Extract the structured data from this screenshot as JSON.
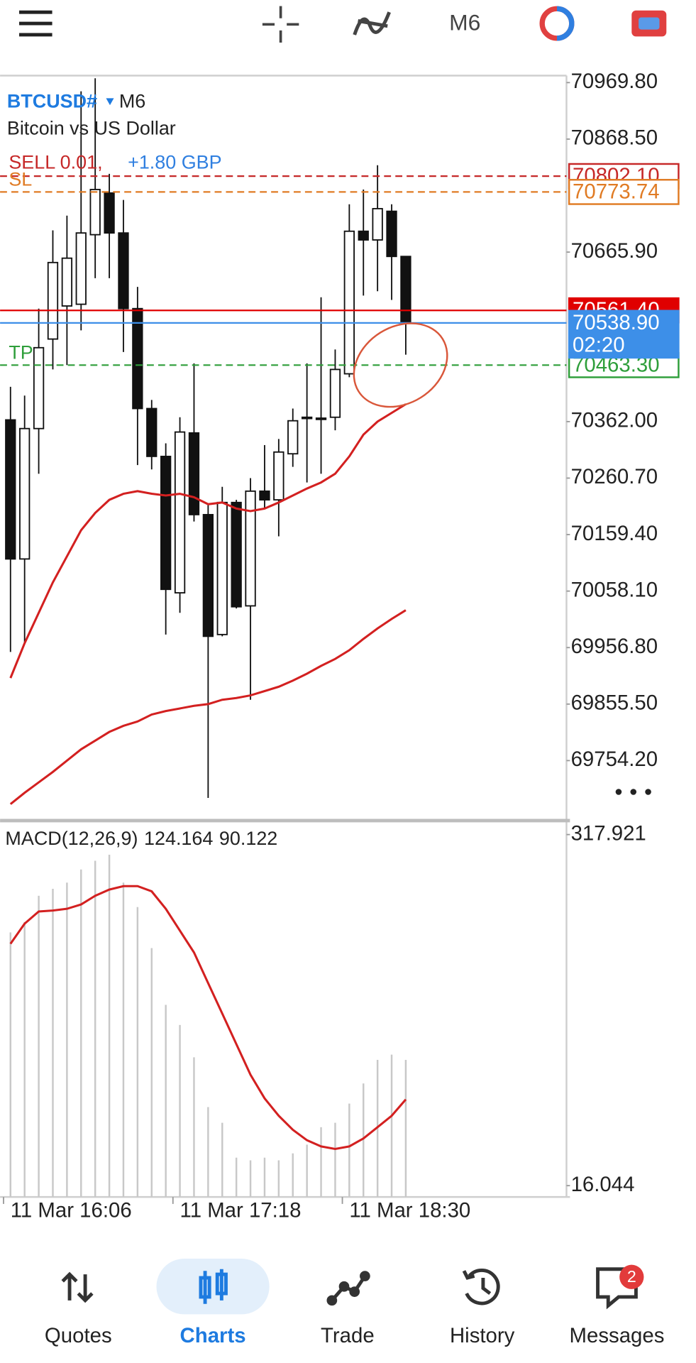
{
  "toolbar": {
    "timeframe": "M6"
  },
  "chart_data": [
    {
      "type": "candlestick",
      "symbol": "BTCUSD#",
      "timeframe": "M6",
      "subtitle": "Bitcoin vs US Dollar",
      "categories": [
        "11 Mar 16:06",
        null,
        null,
        null,
        null,
        null,
        null,
        null,
        null,
        null,
        null,
        null,
        "11 Mar 17:18",
        null,
        null,
        null,
        null,
        null,
        null,
        null,
        null,
        null,
        null,
        null,
        "11 Mar 18:30",
        null,
        null,
        null,
        null
      ],
      "open": [
        70365.1,
        70115.7,
        70349.5,
        70510.0,
        70569.3,
        70572.4,
        70697.1,
        70771.9,
        70700.2,
        70564.6,
        70385.4,
        70299.6,
        70055.0,
        70341.7,
        70195.2,
        69980.2,
        70217.0,
        70031.6,
        70237.3,
        70221.7,
        70304.3,
        70369.8,
        70368.2,
        70369.8,
        70447.7,
        70703.3,
        70687.7,
        70739.1,
        70658.1
      ],
      "high": [
        70424.3,
        70408.7,
        70564.6,
        70704.9,
        70731.3,
        70954.2,
        70977.6,
        70806.2,
        70759.4,
        70603.6,
        70400.9,
        70323.0,
        70369.8,
        70466.4,
        70213.9,
        70245.1,
        70221.7,
        70260.7,
        70319.9,
        70330.8,
        70385.4,
        70466.4,
        70584.9,
        70491.3,
        70751.6,
        70778.1,
        70821.7,
        70751.6,
        70658.1
      ],
      "low": [
        69949.0,
        69964.6,
        70268.5,
        70455.5,
        70463.3,
        70525.6,
        70619.1,
        70619.1,
        70486.7,
        70284.1,
        70276.3,
        69980.2,
        70019.1,
        70182.8,
        69687.2,
        69977.0,
        70026.9,
        69863.3,
        70206.1,
        70156.3,
        70280.9,
        70252.9,
        70268.5,
        70346.4,
        70441.5,
        70588.0,
        70595.8,
        70580.2,
        70482.0
      ],
      "close": [
        70115.7,
        70349.5,
        70494.5,
        70647.2,
        70655.0,
        70700.2,
        70778.1,
        70700.2,
        70564.6,
        70385.4,
        70299.6,
        70061.2,
        70343.3,
        70195.2,
        69977.0,
        70217.0,
        70030.0,
        70237.3,
        70221.7,
        70307.4,
        70363.5,
        70368.2,
        70368.2,
        70455.5,
        70703.3,
        70687.7,
        70743.8,
        70658.1,
        70538.9
      ],
      "lines": [
        {
          "color": "#d32020",
          "values": [
            69902.2,
            69964.6,
            70019.1,
            70073.7,
            70120.4,
            70167.2,
            70198.3,
            70221.7,
            70232.6,
            70237.3,
            70232.6,
            70229.5,
            70232.6,
            70226.4,
            70213.9,
            70217.0,
            70206.1,
            70201.5,
            70206.1,
            70217.0,
            70229.5,
            70242.0,
            70252.9,
            70268.5,
            70299.6,
            70338.6,
            70362.0,
            70377.6,
            70393.2
          ]
        },
        {
          "color": "#d32020",
          "values": [
            69676.2,
            69696.5,
            69715.2,
            69733.9,
            69754.2,
            69774.4,
            69790.0,
            69805.6,
            69816.5,
            69824.3,
            69836.8,
            69843.0,
            69847.7,
            69852.4,
            69855.5,
            69863.3,
            69866.4,
            69871.1,
            69878.8,
            69886.6,
            69897.6,
            69910.0,
            69924.0,
            69936.5,
            69952.1,
            69972.4,
            69991.1,
            70008.2,
            70023.8
          ]
        }
      ],
      "ylim": [
        69648.2,
        70982.3
      ],
      "yticks": [
        {
          "value": 70969.8,
          "label": "70969.80"
        },
        {
          "value": 70868.5,
          "label": "70868.50"
        },
        {
          "value": 70665.9,
          "label": "70665.90"
        },
        {
          "value": 70362.0,
          "label": "70362.00"
        },
        {
          "value": 70260.7,
          "label": "70260.70"
        },
        {
          "value": 70159.4,
          "label": "70159.40"
        },
        {
          "value": 70058.1,
          "label": "70058.10"
        },
        {
          "value": 69956.8,
          "label": "69956.80"
        },
        {
          "value": 69855.5,
          "label": "69855.50"
        },
        {
          "value": 69754.2,
          "label": "69754.20"
        }
      ],
      "position": {
        "tag": "SELL 0.01,",
        "profit": "+1.80 GBP"
      },
      "levels": [
        {
          "value": 70802.1,
          "label": "70802.10",
          "color": "#c62828",
          "style": "dashed",
          "box": "outline"
        },
        {
          "tag": "SL",
          "value": 70773.74,
          "color": "#e07b24",
          "style": "dashed",
          "box": "outline"
        },
        {
          "tag": "TP",
          "value": 70463.3,
          "label": "70463.30",
          "color": "#2e9e3a",
          "style": "dashed",
          "box": "outline"
        },
        {
          "value": 70561.4,
          "label": "70561.40",
          "color": "#e00000",
          "style": "solid",
          "box": "filled"
        },
        {
          "value": 70538.9,
          "label": "70538.90",
          "timer": "02:20",
          "color": "#3d8fe8",
          "style": "solid",
          "box": "filled"
        }
      ]
    },
    {
      "type": "macd",
      "label": "MACD(12,26,9)",
      "values": [
        233.8,
        242.8,
        265.3,
        271.3,
        276.6,
        287.9,
        295.4,
        300.6,
        276.6,
        255.6,
        220.3,
        171.5,
        154.2,
        126.4,
        83.6,
        70.1,
        40.1,
        37.8,
        40.1,
        37.8,
        43.8,
        51.3,
        66.3,
        70.1,
        86.6,
        103.9,
        124.2,
        128.7,
        124.164
      ],
      "signal": [
        224.0,
        241.3,
        251.8,
        252.6,
        254.1,
        257.8,
        265.3,
        270.6,
        273.6,
        273.6,
        269.1,
        254.1,
        235.3,
        216.5,
        190.2,
        164.0,
        137.7,
        111.4,
        91.1,
        76.1,
        64.1,
        55.1,
        49.8,
        47.6,
        49.8,
        56.6,
        66.3,
        76.1,
        90.122
      ],
      "bar_color": "#c8c8c8",
      "line_color": "#d32020",
      "ylim": [
        6.3,
        329.2
      ],
      "yticks": [
        317.921,
        16.044
      ]
    }
  ],
  "nav": {
    "items": [
      "Quotes",
      "Charts",
      "Trade",
      "History",
      "Messages"
    ],
    "active": 1,
    "badge": 2
  }
}
